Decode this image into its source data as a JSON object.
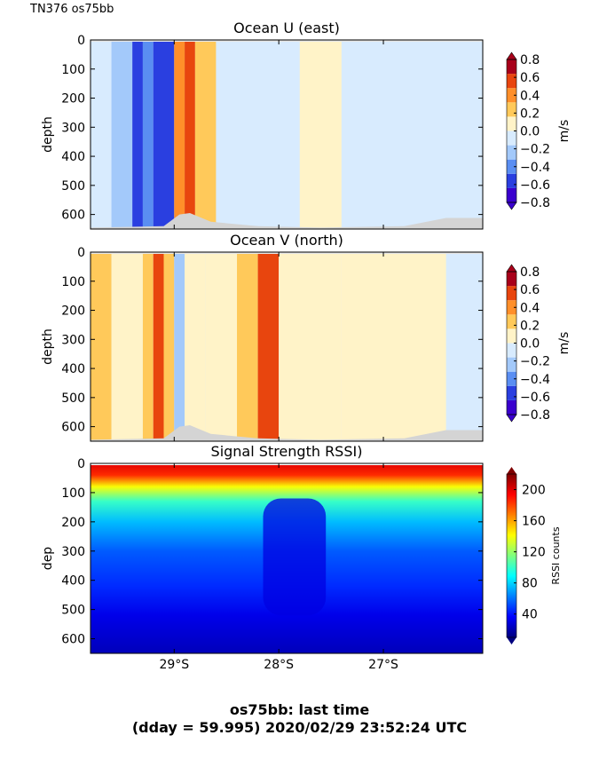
{
  "header": {
    "cruise_label": "TN376 os75bb"
  },
  "footer": {
    "line1": "os75bb: last time",
    "line2": "(dday = 59.995) 2020/02/29 23:52:24 UTC"
  },
  "colors": {
    "diverging": [
      "#3a00ce",
      "#2a3fe0",
      "#5a8ef2",
      "#a3c9fa",
      "#d8ebfe",
      "#fff3c8",
      "#ffc95a",
      "#ff8f2a",
      "#e8450e",
      "#a8001a"
    ],
    "topo": "#d4d4d4",
    "jet": [
      "#00007f",
      "#0000ff",
      "#007fff",
      "#00ffff",
      "#7fff7f",
      "#ffff00",
      "#ff7f00",
      "#ff0000",
      "#7f0000"
    ]
  },
  "chart_data": [
    {
      "type": "heatmap",
      "title": "Ocean U (east)",
      "ylabel": "depth",
      "colorbar_label": "m/s",
      "colorbar_ticks": [
        "0.8",
        "0.6",
        "0.4",
        "0.2",
        "0.0",
        "−0.2",
        "−0.4",
        "−0.6",
        "−0.8"
      ],
      "clim": [
        -0.8,
        0.8
      ],
      "yticks": [
        "0",
        "100",
        "200",
        "300",
        "400",
        "500",
        "600"
      ],
      "ylim": [
        650,
        0
      ],
      "x_ticks_visible": false,
      "x_range_deg_south": [
        29.8,
        26.05
      ],
      "bands": [
        {
          "lat_start": 29.8,
          "lat_end": 29.6,
          "value": -0.05
        },
        {
          "lat_start": 29.6,
          "lat_end": 29.4,
          "value": -0.3
        },
        {
          "lat_start": 29.4,
          "lat_end": 29.3,
          "value": -0.5
        },
        {
          "lat_start": 29.3,
          "lat_end": 29.2,
          "value": -0.35
        },
        {
          "lat_start": 29.2,
          "lat_end": 29.0,
          "value": -0.5
        },
        {
          "lat_start": 29.0,
          "lat_end": 28.9,
          "value": 0.35
        },
        {
          "lat_start": 28.9,
          "lat_end": 28.8,
          "value": 0.5
        },
        {
          "lat_start": 28.8,
          "lat_end": 28.6,
          "value": 0.3
        },
        {
          "lat_start": 28.6,
          "lat_end": 28.2,
          "value": -0.1
        },
        {
          "lat_start": 28.2,
          "lat_end": 27.8,
          "value": -0.05
        },
        {
          "lat_start": 27.8,
          "lat_end": 27.4,
          "value": 0.1
        },
        {
          "lat_start": 27.4,
          "lat_end": 26.8,
          "value": -0.05
        },
        {
          "lat_start": 26.8,
          "lat_end": 26.05,
          "value": -0.1
        }
      ]
    },
    {
      "type": "heatmap",
      "title": "Ocean V (north)",
      "ylabel": "depth",
      "colorbar_label": "m/s",
      "colorbar_ticks": [
        "0.8",
        "0.6",
        "0.4",
        "0.2",
        "0.0",
        "−0.2",
        "−0.4",
        "−0.6",
        "−0.8"
      ],
      "clim": [
        -0.8,
        0.8
      ],
      "yticks": [
        "0",
        "100",
        "200",
        "300",
        "400",
        "500",
        "600"
      ],
      "ylim": [
        650,
        0
      ],
      "x_ticks_visible": false,
      "x_range_deg_south": [
        29.8,
        26.05
      ],
      "bands": [
        {
          "lat_start": 29.8,
          "lat_end": 29.6,
          "value": 0.2
        },
        {
          "lat_start": 29.6,
          "lat_end": 29.3,
          "value": 0.1
        },
        {
          "lat_start": 29.3,
          "lat_end": 29.2,
          "value": 0.3
        },
        {
          "lat_start": 29.2,
          "lat_end": 29.1,
          "value": 0.5
        },
        {
          "lat_start": 29.1,
          "lat_end": 29.0,
          "value": 0.2
        },
        {
          "lat_start": 29.0,
          "lat_end": 28.9,
          "value": -0.3
        },
        {
          "lat_start": 28.9,
          "lat_end": 28.7,
          "value": 0.05
        },
        {
          "lat_start": 28.7,
          "lat_end": 28.4,
          "value": 0.15
        },
        {
          "lat_start": 28.4,
          "lat_end": 28.2,
          "value": 0.3
        },
        {
          "lat_start": 28.2,
          "lat_end": 28.0,
          "value": 0.55
        },
        {
          "lat_start": 28.0,
          "lat_end": 27.4,
          "value": 0.1
        },
        {
          "lat_start": 27.4,
          "lat_end": 26.4,
          "value": 0.05
        },
        {
          "lat_start": 26.4,
          "lat_end": 26.05,
          "value": -0.05
        }
      ]
    },
    {
      "type": "heatmap",
      "title": "Signal Strength RSSI)",
      "ylabel": "dep",
      "colorbar_label": "RSSI counts",
      "colorbar_ticks": [
        "200",
        "160",
        "120",
        "80",
        "40"
      ],
      "clim": [
        10,
        220
      ],
      "yticks": [
        "0",
        "100",
        "200",
        "300",
        "400",
        "500",
        "600"
      ],
      "ylim": [
        650,
        0
      ],
      "xticks": [
        "29°S",
        "28°S",
        "27°S"
      ],
      "xtick_positions_deg_south": [
        29,
        28,
        27
      ],
      "x_range_deg_south": [
        29.8,
        26.05
      ],
      "profile": [
        {
          "depth": 0,
          "value": 200
        },
        {
          "depth": 40,
          "value": 185
        },
        {
          "depth": 80,
          "value": 140
        },
        {
          "depth": 130,
          "value": 100
        },
        {
          "depth": 200,
          "value": 75
        },
        {
          "depth": 300,
          "value": 55
        },
        {
          "depth": 420,
          "value": 45
        },
        {
          "depth": 520,
          "value": 32
        },
        {
          "depth": 650,
          "value": 22
        }
      ],
      "low_anomaly": {
        "lat_start": 28.15,
        "lat_end": 27.55,
        "value": 30
      }
    }
  ]
}
